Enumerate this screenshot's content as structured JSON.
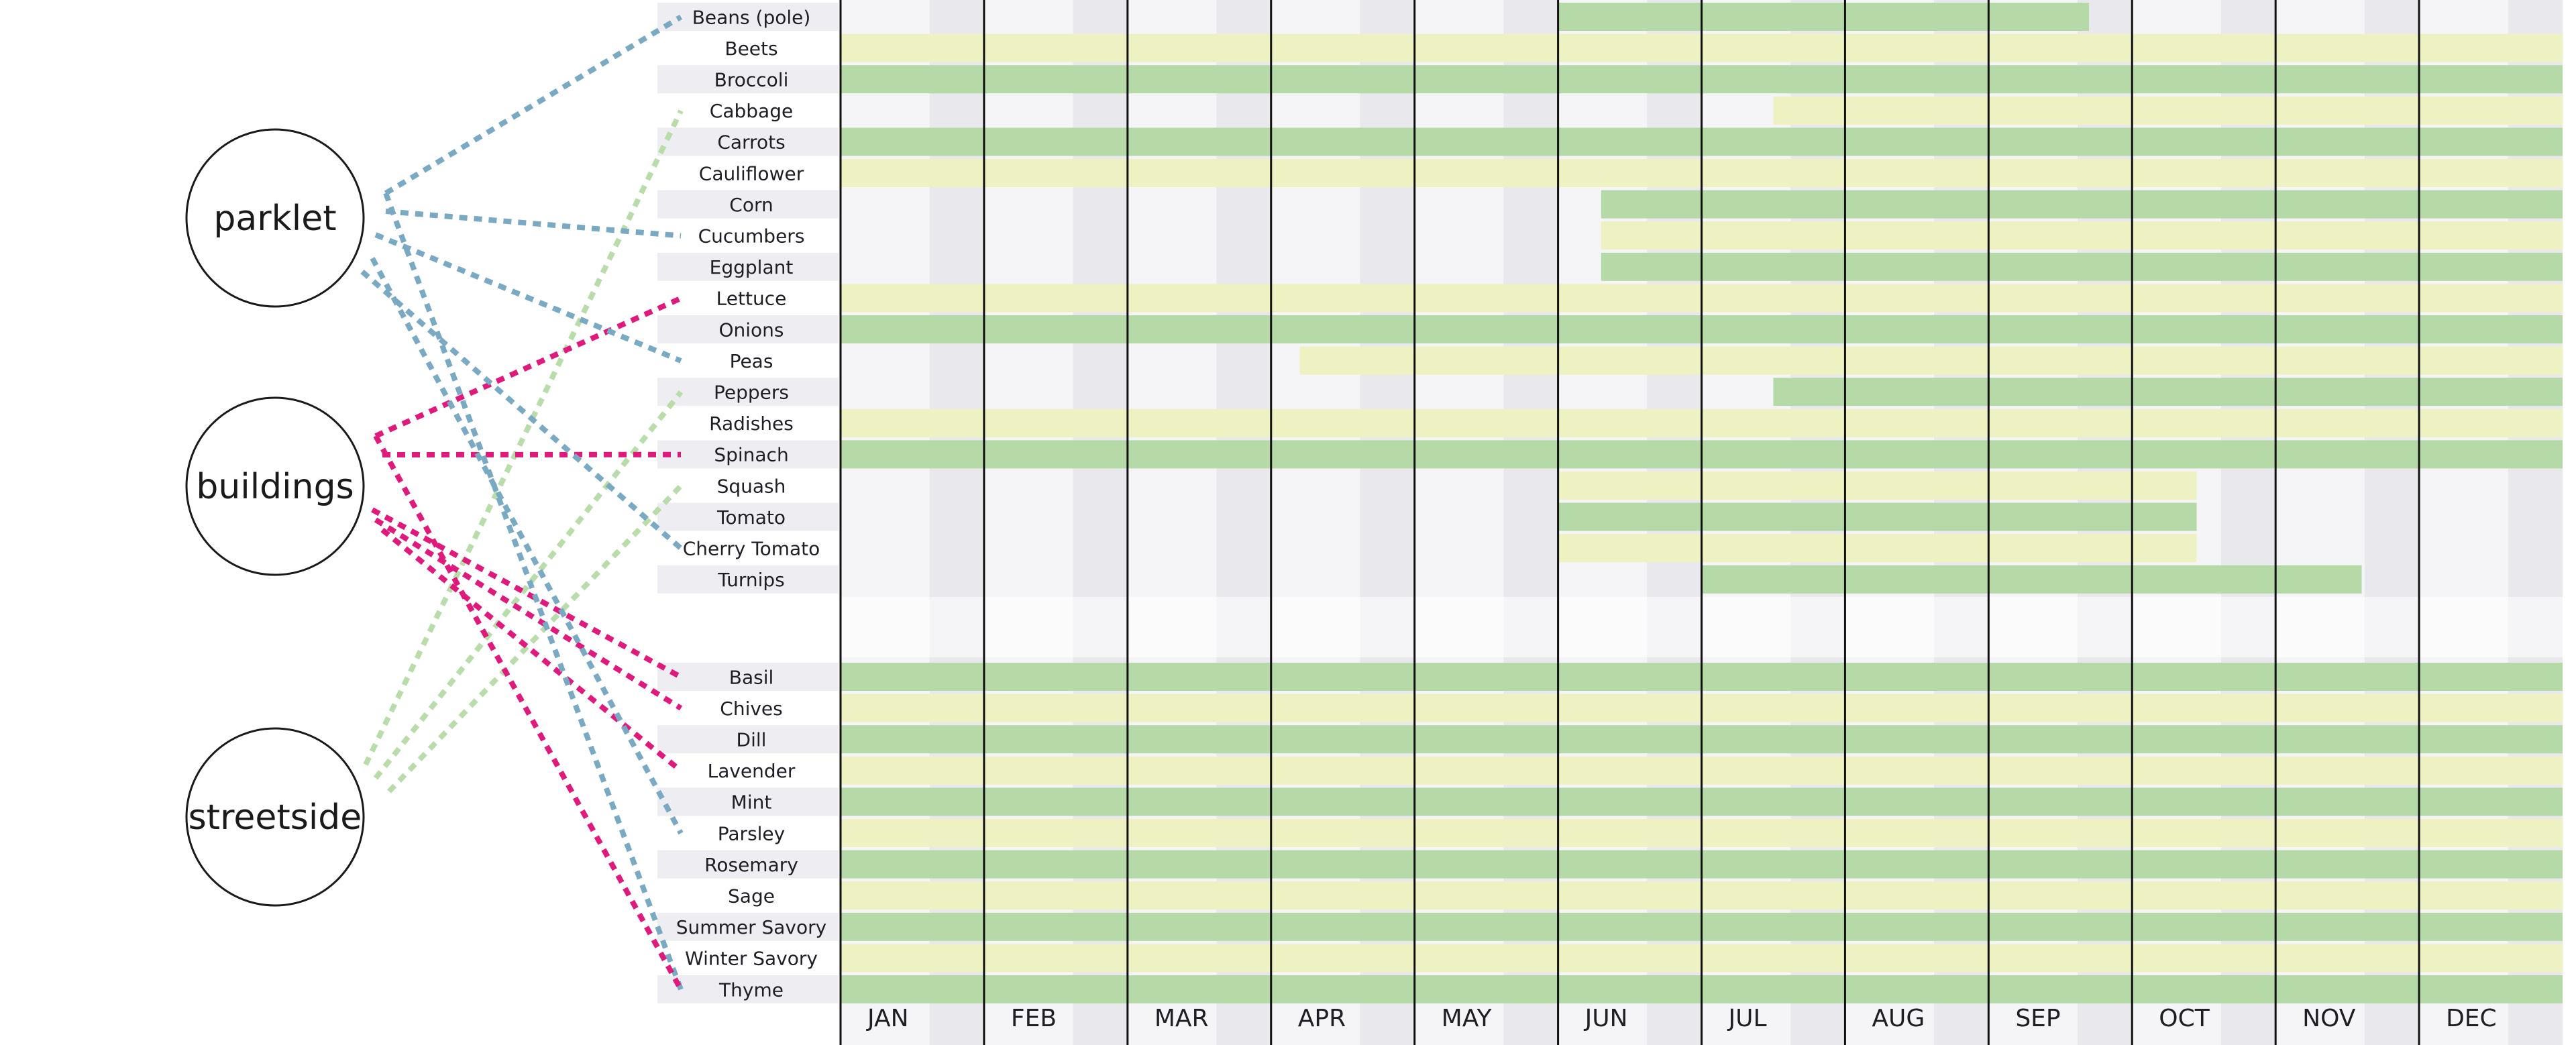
{
  "groups": [
    {
      "id": "parklet",
      "label": "parklet",
      "color": "#7aa9c3"
    },
    {
      "id": "buildings",
      "label": "buildings",
      "color": "#e0197d"
    },
    {
      "id": "streetside",
      "label": "streetside",
      "color": "#b8dcaa"
    }
  ],
  "months": [
    "JAN",
    "FEB",
    "MAR",
    "APR",
    "MAY",
    "JUN",
    "JUL",
    "AUG",
    "SEP",
    "OCT",
    "NOV",
    "DEC"
  ],
  "season_colors": {
    "band_a": "#b5d9a7",
    "band_b": "#eef2c2",
    "shade_a": "#e9e9ed",
    "shade_b": "#f5f5f7"
  },
  "vegetables": [
    {
      "name": "Beans (pole)",
      "start": 5.0,
      "end": 8.7,
      "links": [
        "parklet"
      ]
    },
    {
      "name": "Beets",
      "start": 0,
      "end": 12,
      "links": []
    },
    {
      "name": "Broccoli",
      "start": 0,
      "end": 12,
      "links": []
    },
    {
      "name": "Cabbage",
      "start": 6.5,
      "end": 12,
      "links": [
        "streetside"
      ]
    },
    {
      "name": "Carrots",
      "start": 0,
      "end": 12,
      "links": []
    },
    {
      "name": "Cauliflower",
      "start": 0,
      "end": 12,
      "links": []
    },
    {
      "name": "Corn",
      "start": 5.3,
      "end": 12,
      "links": []
    },
    {
      "name": "Cucumbers",
      "start": 5.3,
      "end": 12,
      "links": [
        "parklet"
      ]
    },
    {
      "name": "Eggplant",
      "start": 5.3,
      "end": 12,
      "links": []
    },
    {
      "name": "Lettuce",
      "start": 0,
      "end": 12,
      "links": [
        "buildings"
      ]
    },
    {
      "name": "Onions",
      "start": 0,
      "end": 12,
      "links": []
    },
    {
      "name": "Peas",
      "start": 3.2,
      "end": 12,
      "links": [
        "parklet"
      ]
    },
    {
      "name": "Peppers",
      "start": 6.5,
      "end": 12,
      "links": [
        "streetside"
      ]
    },
    {
      "name": "Radishes",
      "start": 0,
      "end": 12,
      "links": []
    },
    {
      "name": "Spinach",
      "start": 0,
      "end": 12,
      "links": [
        "buildings"
      ]
    },
    {
      "name": "Squash",
      "start": 5.0,
      "end": 9.45,
      "links": [
        "streetside"
      ]
    },
    {
      "name": "Tomato",
      "start": 5.0,
      "end": 9.45,
      "links": []
    },
    {
      "name": "Cherry Tomato",
      "start": 5.0,
      "end": 9.45,
      "links": [
        "parklet"
      ]
    },
    {
      "name": "Turnips",
      "start": 6.0,
      "end": 10.6,
      "links": []
    }
  ],
  "herbs": [
    {
      "name": "Basil",
      "start": 0,
      "end": 12,
      "links": [
        "buildings"
      ]
    },
    {
      "name": "Chives",
      "start": 0,
      "end": 12,
      "links": [
        "buildings"
      ]
    },
    {
      "name": "Dill",
      "start": 0,
      "end": 12,
      "links": []
    },
    {
      "name": "Lavender",
      "start": 0,
      "end": 12,
      "links": [
        "buildings"
      ]
    },
    {
      "name": "Mint",
      "start": 0,
      "end": 12,
      "links": []
    },
    {
      "name": "Parsley",
      "start": 0,
      "end": 12,
      "links": [
        "parklet"
      ]
    },
    {
      "name": "Rosemary",
      "start": 0,
      "end": 12,
      "links": []
    },
    {
      "name": "Sage",
      "start": 0,
      "end": 12,
      "links": []
    },
    {
      "name": "Summer Savory",
      "start": 0,
      "end": 12,
      "links": []
    },
    {
      "name": "Winter Savory",
      "start": 0,
      "end": 12,
      "links": []
    },
    {
      "name": "Thyme",
      "start": 0,
      "end": 12,
      "links": [
        "parklet",
        "buildings"
      ]
    }
  ]
}
